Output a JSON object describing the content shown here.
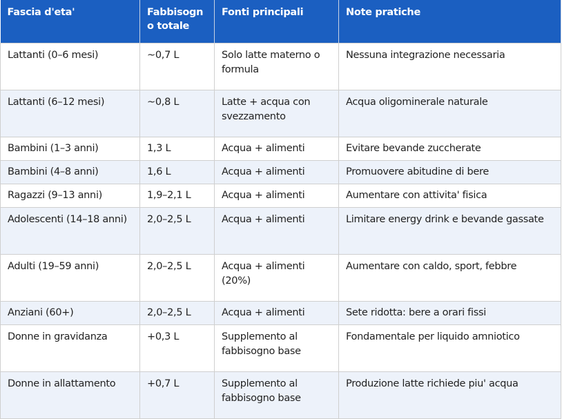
{
  "table": {
    "header": [
      "Fascia d'eta'",
      "Fabbisogno totale",
      "Fonti principali",
      "Note pratiche"
    ],
    "rows": [
      [
        "Lattanti (0–6 mesi)",
        "~0,7 L",
        "Solo latte materno o formula",
        "Nessuna integrazione necessaria"
      ],
      [
        "Lattanti (6–12 mesi)",
        "~0,8 L",
        "Latte + acqua con svezzamento",
        "Acqua oligominerale naturale"
      ],
      [
        "Bambini (1–3 anni)",
        "1,3 L",
        "Acqua + alimenti",
        "Evitare bevande zuccherate"
      ],
      [
        "Bambini (4–8 anni)",
        "1,6 L",
        "Acqua + alimenti",
        "Promuovere abitudine di bere"
      ],
      [
        "Ragazzi (9–13 anni)",
        "1,9–2,1 L",
        "Acqua + alimenti",
        "Aumentare con attivita' fisica"
      ],
      [
        "Adolescenti (14–18 anni)",
        "2,0–2,5 L",
        "Acqua + alimenti",
        "Limitare energy drink e bevande gassate"
      ],
      [
        "Adulti (19–59 anni)",
        "2,0–2,5 L",
        "Acqua + alimenti (20%)",
        "Aumentare con caldo, sport, febbre"
      ],
      [
        "Anziani (60+)",
        "2,0–2,5 L",
        "Acqua + alimenti",
        "Sete ridotta: bere a orari fissi"
      ],
      [
        "Donne in gravidanza",
        "+0,3 L",
        "Supplemento al fabbisogno base",
        "Fondamentale per liquido amniotico"
      ],
      [
        "Donne in allattamento",
        "+0,7 L",
        "Supplemento al fabbisogno base",
        "Produzione latte richiede piu' acqua"
      ]
    ]
  }
}
